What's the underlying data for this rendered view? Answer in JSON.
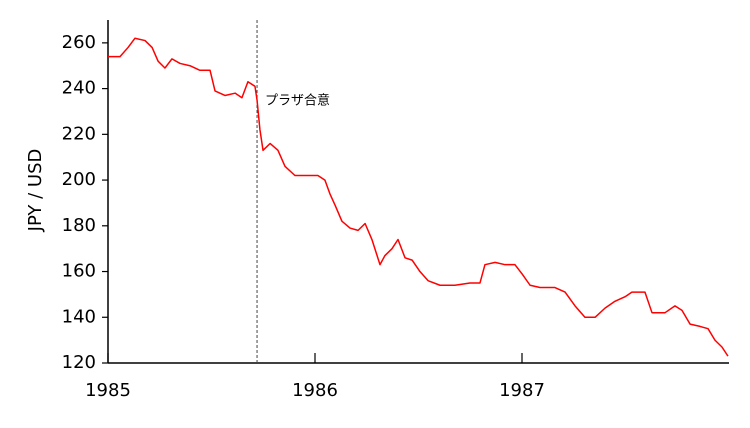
{
  "chart_data": {
    "type": "line",
    "y_label": "JPY / USD",
    "annotation": {
      "text": "プラザ合意",
      "x": 1985.72
    },
    "color": "#ff0000",
    "xlim": [
      1985,
      1988
    ],
    "xticks": [
      1985,
      1986,
      1987
    ],
    "ylim": [
      120,
      270
    ],
    "yticks": [
      120,
      140,
      160,
      180,
      200,
      220,
      240,
      260
    ],
    "x": [
      1985.0,
      1985.058,
      1985.097,
      1985.13,
      1985.179,
      1985.213,
      1985.242,
      1985.275,
      1985.309,
      1985.348,
      1985.396,
      1985.444,
      1985.493,
      1985.517,
      1985.565,
      1985.614,
      1985.647,
      1985.676,
      1985.71,
      1985.72,
      1985.734,
      1985.749,
      1985.783,
      1985.821,
      1985.855,
      1985.903,
      1985.952,
      1986.014,
      1986.048,
      1986.072,
      1986.097,
      1986.13,
      1986.169,
      1986.208,
      1986.242,
      1986.275,
      1986.314,
      1986.338,
      1986.372,
      1986.401,
      1986.435,
      1986.469,
      1986.507,
      1986.546,
      1986.604,
      1986.676,
      1986.749,
      1986.797,
      1986.821,
      1986.87,
      1986.918,
      1986.966,
      1987.0,
      1987.039,
      1987.087,
      1987.159,
      1987.208,
      1987.256,
      1987.304,
      1987.353,
      1987.401,
      1987.449,
      1987.498,
      1987.531,
      1987.594,
      1987.628,
      1987.691,
      1987.739,
      1987.773,
      1987.812,
      1987.86,
      1987.899,
      1987.932,
      1987.966,
      1987.995
    ],
    "values": [
      254,
      254,
      258,
      262,
      261,
      258,
      252,
      249,
      253,
      251,
      250,
      248,
      248,
      239,
      237,
      238,
      236,
      243,
      241,
      235,
      222,
      213,
      216,
      213,
      206,
      202,
      202,
      202,
      200,
      194,
      189,
      182,
      179,
      178,
      181,
      174,
      163,
      167,
      170,
      174,
      166,
      165,
      160,
      156,
      154,
      154,
      155,
      155,
      163,
      164,
      163,
      163,
      159,
      154,
      153,
      153,
      151,
      145,
      140,
      140,
      144,
      147,
      149,
      151,
      151,
      142,
      142,
      145,
      143,
      137,
      136,
      135,
      130,
      127,
      123
    ]
  }
}
